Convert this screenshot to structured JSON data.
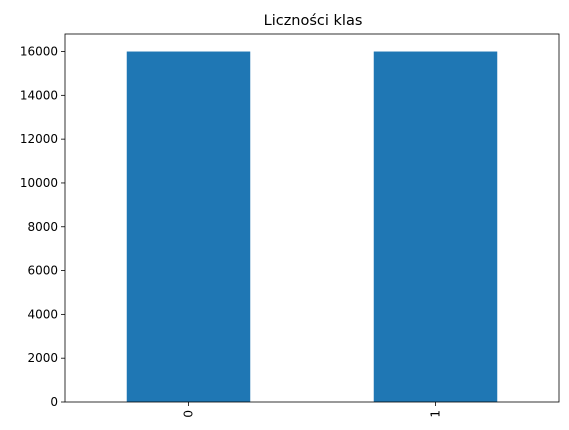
{
  "chart_data": {
    "type": "bar",
    "title": "Liczności klas",
    "xlabel": "",
    "ylabel": "",
    "categories": [
      "0",
      "1"
    ],
    "values": [
      16000,
      16000
    ],
    "ylim": [
      0,
      16800
    ],
    "yticks": [
      0,
      2000,
      4000,
      6000,
      8000,
      10000,
      12000,
      14000,
      16000
    ],
    "grid": false,
    "legend": "none",
    "x_tick_rotation": "vertical",
    "colors": {
      "bar": "#1f77b4",
      "axis": "#000000",
      "background": "#ffffff"
    }
  }
}
